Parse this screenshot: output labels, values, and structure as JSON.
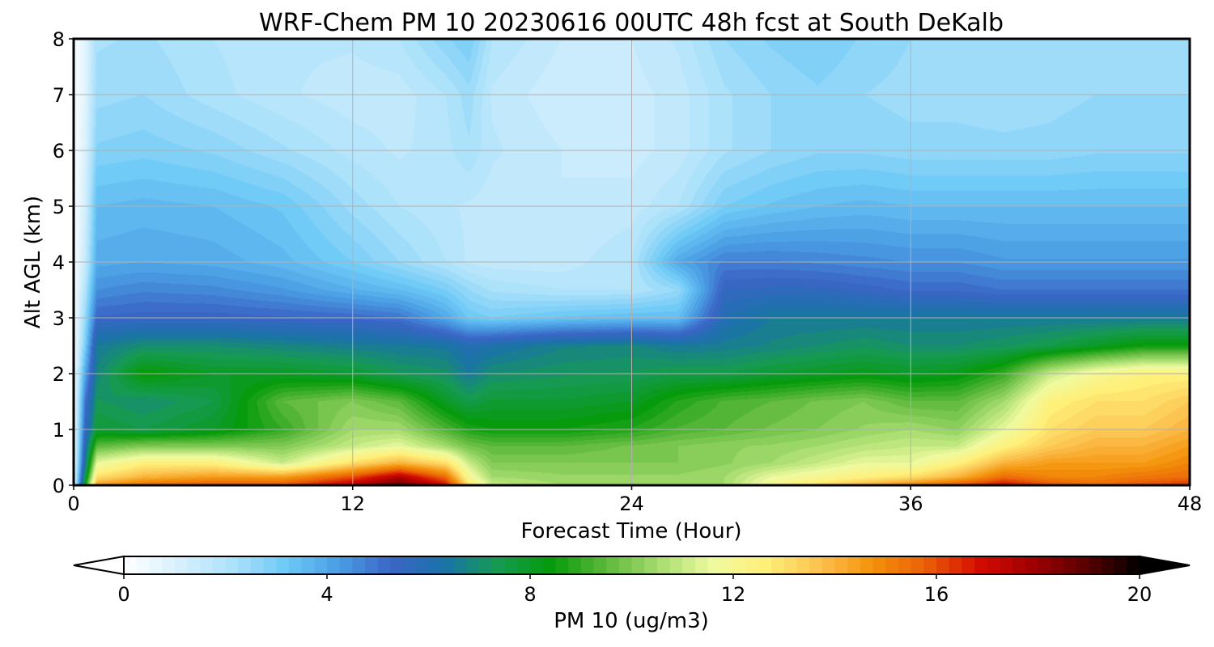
{
  "chart_data": {
    "type": "heatmap",
    "title": "WRF-Chem PM 10  20230616 00UTC 48h fcst at South DeKalb",
    "xlabel": "Forecast Time (Hour)",
    "ylabel": "Alt AGL (km)",
    "xlim": [
      0,
      48
    ],
    "ylim": [
      0,
      8
    ],
    "x_ticks": [
      0,
      12,
      24,
      36,
      48
    ],
    "y_ticks": [
      0,
      1,
      2,
      3,
      4,
      5,
      6,
      7,
      8
    ],
    "grid": true,
    "x": [
      0,
      0.5,
      1,
      3,
      6,
      9,
      12,
      14,
      16,
      17,
      18,
      21,
      24,
      26,
      28,
      30,
      32,
      34,
      36,
      38,
      40,
      42,
      44,
      46,
      48
    ],
    "y": [
      0,
      0.15,
      0.4,
      0.7,
      1.0,
      1.5,
      2.0,
      2.5,
      3.0,
      3.5,
      4.0,
      5.0,
      6.0,
      7.0,
      8.0
    ],
    "z": [
      [
        0.5,
        8.5,
        14.5,
        15.5,
        16,
        16,
        17.5,
        19,
        17,
        13,
        11,
        10.5,
        10.5,
        10.5,
        10.5,
        12,
        13,
        14,
        15,
        16,
        17,
        16,
        15.5,
        16,
        16.5
      ],
      [
        0.4,
        7.5,
        13,
        14,
        14.5,
        14.5,
        16,
        17.5,
        15.5,
        12,
        10.5,
        10.3,
        10.3,
        10.3,
        10.5,
        11.5,
        12,
        12.5,
        13,
        14,
        15.5,
        15,
        15,
        15.3,
        15.5
      ],
      [
        0.3,
        6.5,
        11.5,
        12.5,
        12.5,
        11,
        13,
        14,
        13,
        11,
        10,
        10,
        10,
        10,
        10.2,
        10.5,
        11,
        11.5,
        11.5,
        12.5,
        14,
        14.5,
        14.5,
        14.5,
        15
      ],
      [
        0.2,
        6,
        9.5,
        10,
        10,
        10,
        11,
        11.5,
        10.5,
        9.8,
        9.5,
        9.5,
        9.8,
        10,
        10.2,
        10.3,
        10.5,
        10.8,
        11,
        11,
        12.5,
        13.5,
        14,
        14,
        14.5
      ],
      [
        0.2,
        5.5,
        7.8,
        7.5,
        8,
        9,
        10.5,
        10.5,
        9.3,
        8.7,
        8.5,
        8.5,
        8.8,
        9.3,
        9.5,
        9.8,
        10,
        10.3,
        10.5,
        10.2,
        11.5,
        13,
        13.5,
        13.5,
        14
      ],
      [
        0.1,
        5,
        7.3,
        7,
        7.5,
        9.5,
        10,
        9.5,
        8,
        7.5,
        7.8,
        7.8,
        8,
        8.8,
        9.3,
        9.5,
        9.8,
        10,
        9.5,
        9.5,
        10.5,
        12.5,
        13,
        13,
        13.5
      ],
      [
        0.1,
        4,
        6.8,
        8.5,
        8,
        8,
        7.8,
        7.3,
        7.1,
        6.5,
        7,
        7.2,
        7.3,
        7.5,
        7.5,
        7.8,
        8,
        8.2,
        8,
        8.2,
        9,
        11,
        12,
        12.5,
        12.5
      ],
      [
        0.1,
        3,
        6.5,
        7,
        7,
        6.8,
        6.6,
        6.5,
        6.4,
        6,
        6.2,
        6.7,
        6.8,
        6.5,
        6.6,
        6.8,
        7,
        7.2,
        7,
        7,
        7.2,
        7.5,
        8,
        8.5,
        8.5
      ],
      [
        0.1,
        2.5,
        5.3,
        5.4,
        5.4,
        5.3,
        5.2,
        5,
        4,
        3.2,
        3,
        3.3,
        3.5,
        3.5,
        6,
        6.5,
        6.5,
        6.5,
        6.5,
        6.5,
        6.5,
        6.5,
        6.5,
        6.5,
        6.5
      ],
      [
        0.1,
        2,
        4.5,
        4.7,
        4.6,
        4.3,
        3.8,
        3.5,
        3,
        2.5,
        2.2,
        2,
        2,
        2.5,
        5.5,
        5.6,
        5.6,
        5.4,
        5.2,
        5.2,
        5,
        5,
        5,
        5,
        5
      ],
      [
        0.1,
        1.5,
        3.9,
        4,
        3.9,
        3.6,
        3,
        2.5,
        2,
        1.7,
        1.6,
        1.6,
        2,
        4,
        4.8,
        4.8,
        4.7,
        4.6,
        4.5,
        4.5,
        4.3,
        4.3,
        4.3,
        4.3,
        4.3
      ],
      [
        0.1,
        1.2,
        3.5,
        3.6,
        3.5,
        3.2,
        2.4,
        2,
        1.8,
        1.7,
        1.6,
        1.5,
        1.6,
        2,
        3,
        3.3,
        3.5,
        3.6,
        3.5,
        3.5,
        3.5,
        3.5,
        3.5,
        3.5,
        3.5
      ],
      [
        0.1,
        1,
        2.8,
        2.9,
        2.7,
        2.3,
        1.9,
        1.7,
        1.9,
        2.2,
        1.8,
        1.5,
        1.4,
        1.6,
        2.2,
        2.5,
        2.7,
        2.7,
        2.6,
        2.6,
        2.6,
        2.6,
        2.7,
        2.7,
        2.7
      ],
      [
        0.1,
        0.8,
        2.4,
        2.5,
        2.1,
        1.8,
        1.6,
        1.6,
        2,
        2.4,
        1.7,
        1.3,
        1.4,
        1.6,
        2.2,
        2.5,
        2.7,
        2.5,
        2.4,
        2.4,
        2.3,
        2.4,
        2.5,
        2.5,
        2.5
      ],
      [
        0.1,
        0.8,
        2.2,
        2.3,
        2,
        1.8,
        1.8,
        2,
        2.7,
        3,
        2,
        1.5,
        1.5,
        1.8,
        2.5,
        2.8,
        3,
        2.7,
        2.5,
        2.3,
        2.3,
        2.4,
        2.4,
        2.4,
        2.4
      ]
    ],
    "colorbar": {
      "label": "PM 10  (ug/m3)",
      "min": 0,
      "max": 20,
      "ticks": [
        0,
        4,
        8,
        12,
        16,
        20
      ],
      "extend": "both",
      "colors": [
        "#ffffff",
        "#d8f0fc",
        "#aee2fb",
        "#6fcaf7",
        "#4a9fe4",
        "#3a65c6",
        "#1a73a8",
        "#169a52",
        "#059a0a",
        "#5bb83a",
        "#a6dc6e",
        "#eefaa0",
        "#fff07a",
        "#fcc250",
        "#f4920a",
        "#ea5f08",
        "#d40b00",
        "#a00000",
        "#5a0000",
        "#000000"
      ]
    }
  }
}
